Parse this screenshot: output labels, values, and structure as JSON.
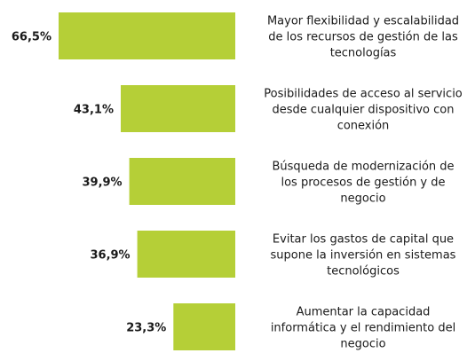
{
  "chart_data": {
    "type": "bar",
    "orientation": "horizontal",
    "bar_color": "#b5cf37",
    "grid": false,
    "legend": "none",
    "xlim": [
      0,
      66.5
    ],
    "categories": [
      [
        "Mayor flexibilidad y escalabilidad",
        "de los recursos de gestión de las",
        "tecnologías"
      ],
      [
        "Posibilidades de acceso al servicio",
        "desde cualquier dispositivo con",
        "conexión"
      ],
      [
        "Búsqueda de modernización de",
        "los procesos de gestión y de",
        "negocio"
      ],
      [
        "Evitar los gastos de capital que",
        "supone la inversión en sistemas",
        "tecnológicos"
      ],
      [
        "Aumentar la capacidad",
        "informática y el rendimiento del",
        "negocio"
      ]
    ],
    "values": [
      66.5,
      43.1,
      39.9,
      36.9,
      23.3
    ],
    "value_labels": [
      "66,5%",
      "43,1%",
      "39,9%",
      "36,9%",
      "23,3%"
    ]
  }
}
